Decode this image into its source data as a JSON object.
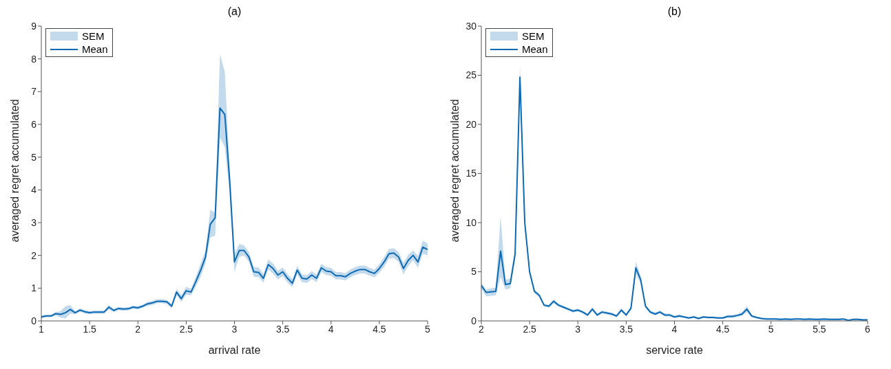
{
  "chart_data": [
    {
      "type": "line",
      "title": "(a)",
      "xlabel": "arrival  rate",
      "ylabel": "averaged regret accumulated",
      "annotations": [
        "SEM"
      ],
      "xlim": [
        1,
        5
      ],
      "ylim": [
        0,
        9
      ],
      "xticks": [
        1,
        1.5,
        2,
        2.5,
        3,
        3.5,
        4,
        4.5,
        5
      ],
      "yticks": [
        0,
        1,
        2,
        3,
        4,
        5,
        6,
        7,
        8,
        9
      ],
      "grid": false,
      "legend": "top left",
      "x": [
        1.0,
        1.05,
        1.1,
        1.15,
        1.2,
        1.25,
        1.3,
        1.35,
        1.4,
        1.45,
        1.5,
        1.55,
        1.6,
        1.65,
        1.7,
        1.75,
        1.8,
        1.85,
        1.9,
        1.95,
        2.0,
        2.05,
        2.1,
        2.15,
        2.2,
        2.25,
        2.3,
        2.35,
        2.4,
        2.45,
        2.5,
        2.55,
        2.6,
        2.65,
        2.7,
        2.75,
        2.8,
        2.85,
        2.9,
        2.95,
        3.0,
        3.05,
        3.1,
        3.15,
        3.2,
        3.25,
        3.3,
        3.35,
        3.4,
        3.45,
        3.5,
        3.55,
        3.6,
        3.65,
        3.7,
        3.75,
        3.8,
        3.85,
        3.9,
        3.95,
        4.0,
        4.05,
        4.1,
        4.15,
        4.2,
        4.25,
        4.3,
        4.35,
        4.4,
        4.45,
        4.5,
        4.55,
        4.6,
        4.65,
        4.7,
        4.75,
        4.8,
        4.85,
        4.9,
        4.95,
        5.0
      ],
      "series": [
        {
          "name": "Mean",
          "color": "#0c6ab4",
          "values": [
            0.12,
            0.15,
            0.15,
            0.22,
            0.2,
            0.25,
            0.35,
            0.25,
            0.33,
            0.28,
            0.25,
            0.27,
            0.27,
            0.27,
            0.42,
            0.32,
            0.38,
            0.36,
            0.37,
            0.42,
            0.4,
            0.45,
            0.52,
            0.55,
            0.6,
            0.6,
            0.58,
            0.45,
            0.88,
            0.68,
            0.92,
            0.88,
            1.2,
            1.55,
            1.95,
            2.95,
            3.15,
            6.5,
            6.3,
            4.3,
            1.8,
            2.15,
            2.15,
            1.95,
            1.5,
            1.48,
            1.3,
            1.72,
            1.6,
            1.4,
            1.5,
            1.3,
            1.15,
            1.55,
            1.3,
            1.28,
            1.4,
            1.3,
            1.62,
            1.52,
            1.5,
            1.38,
            1.38,
            1.35,
            1.45,
            1.52,
            1.57,
            1.57,
            1.5,
            1.45,
            1.6,
            1.8,
            2.05,
            2.07,
            1.95,
            1.6,
            1.85,
            2.0,
            1.8,
            2.25,
            2.18
          ],
          "lower": [
            0.08,
            0.11,
            0.11,
            0.17,
            0.1,
            0.08,
            0.22,
            0.2,
            0.28,
            0.23,
            0.2,
            0.22,
            0.22,
            0.22,
            0.35,
            0.27,
            0.33,
            0.31,
            0.32,
            0.37,
            0.35,
            0.4,
            0.46,
            0.49,
            0.54,
            0.54,
            0.52,
            0.38,
            0.78,
            0.58,
            0.8,
            0.78,
            1.05,
            1.35,
            1.75,
            2.55,
            2.6,
            5.6,
            5.3,
            3.9,
            1.5,
            1.95,
            2.0,
            1.8,
            1.35,
            1.33,
            1.17,
            1.57,
            1.45,
            1.27,
            1.37,
            1.17,
            1.03,
            1.42,
            1.18,
            1.16,
            1.28,
            1.18,
            1.5,
            1.4,
            1.38,
            1.27,
            1.27,
            1.24,
            1.33,
            1.4,
            1.45,
            1.45,
            1.38,
            1.33,
            1.47,
            1.65,
            1.9,
            1.92,
            1.8,
            1.42,
            1.68,
            1.85,
            1.62,
            2.05,
            2.0
          ],
          "upper": [
            0.16,
            0.19,
            0.19,
            0.27,
            0.3,
            0.45,
            0.48,
            0.3,
            0.38,
            0.33,
            0.3,
            0.32,
            0.32,
            0.32,
            0.49,
            0.37,
            0.43,
            0.41,
            0.42,
            0.47,
            0.45,
            0.5,
            0.58,
            0.61,
            0.66,
            0.66,
            0.64,
            0.52,
            0.98,
            0.78,
            1.04,
            0.98,
            1.35,
            1.75,
            2.15,
            3.4,
            3.3,
            8.15,
            7.6,
            4.7,
            2.05,
            2.35,
            2.3,
            2.1,
            1.65,
            1.63,
            1.43,
            1.87,
            1.75,
            1.53,
            1.63,
            1.43,
            1.27,
            1.68,
            1.42,
            1.4,
            1.52,
            1.42,
            1.74,
            1.64,
            1.62,
            1.49,
            1.49,
            1.46,
            1.57,
            1.64,
            1.69,
            1.69,
            1.62,
            1.57,
            1.73,
            1.95,
            2.2,
            2.22,
            2.1,
            1.78,
            2.02,
            2.15,
            1.98,
            2.45,
            2.36
          ]
        }
      ]
    },
    {
      "type": "line",
      "title": "(b)",
      "xlabel": "service  rate",
      "ylabel": "averaged regret accumulated",
      "annotations": [
        "SEM"
      ],
      "xlim": [
        2,
        6
      ],
      "ylim": [
        0,
        30
      ],
      "xticks": [
        2,
        2.5,
        3,
        3.5,
        4,
        4.5,
        5,
        5.5,
        6
      ],
      "yticks": [
        0,
        5,
        10,
        15,
        20,
        25,
        30
      ],
      "grid": false,
      "legend": "top left",
      "x": [
        2.0,
        2.05,
        2.1,
        2.15,
        2.2,
        2.25,
        2.3,
        2.35,
        2.4,
        2.45,
        2.5,
        2.55,
        2.6,
        2.65,
        2.7,
        2.75,
        2.8,
        2.85,
        2.9,
        2.95,
        3.0,
        3.05,
        3.1,
        3.15,
        3.2,
        3.25,
        3.3,
        3.35,
        3.4,
        3.45,
        3.5,
        3.55,
        3.6,
        3.65,
        3.7,
        3.75,
        3.8,
        3.85,
        3.9,
        3.95,
        4.0,
        4.05,
        4.1,
        4.15,
        4.2,
        4.25,
        4.3,
        4.35,
        4.4,
        4.45,
        4.5,
        4.55,
        4.6,
        4.65,
        4.7,
        4.75,
        4.8,
        4.85,
        4.9,
        4.95,
        5.0,
        5.05,
        5.1,
        5.15,
        5.2,
        5.25,
        5.3,
        5.35,
        5.4,
        5.45,
        5.5,
        5.55,
        5.6,
        5.65,
        5.7,
        5.75,
        5.8,
        5.85,
        5.9,
        5.95,
        6.0
      ],
      "series": [
        {
          "name": "Mean",
          "color": "#0c6ab4",
          "values": [
            3.6,
            2.9,
            2.95,
            3.0,
            7.1,
            3.7,
            3.8,
            6.8,
            24.8,
            10.0,
            5.0,
            3.0,
            2.6,
            1.6,
            1.5,
            2.0,
            1.6,
            1.4,
            1.2,
            1.0,
            1.1,
            0.9,
            0.6,
            1.2,
            0.6,
            0.9,
            0.8,
            0.7,
            0.5,
            1.1,
            0.6,
            1.3,
            5.4,
            4.2,
            1.5,
            0.9,
            0.7,
            0.9,
            0.6,
            0.6,
            0.4,
            0.5,
            0.4,
            0.3,
            0.4,
            0.25,
            0.4,
            0.35,
            0.35,
            0.3,
            0.3,
            0.45,
            0.45,
            0.55,
            0.7,
            1.2,
            0.5,
            0.35,
            0.25,
            0.2,
            0.2,
            0.2,
            0.15,
            0.2,
            0.15,
            0.2,
            0.2,
            0.15,
            0.2,
            0.15,
            0.15,
            0.2,
            0.15,
            0.15,
            0.15,
            0.2,
            0.05,
            0.15,
            0.15,
            0.1,
            0.1
          ],
          "lower": [
            3.3,
            2.5,
            2.55,
            2.6,
            4.5,
            3.2,
            3.3,
            6.3,
            23.5,
            9.5,
            4.7,
            2.8,
            2.4,
            1.45,
            1.35,
            1.8,
            1.45,
            1.25,
            1.05,
            0.85,
            0.95,
            0.75,
            0.45,
            1.0,
            0.45,
            0.75,
            0.65,
            0.55,
            0.35,
            0.9,
            0.45,
            1.1,
            4.8,
            3.8,
            1.3,
            0.75,
            0.55,
            0.75,
            0.45,
            0.45,
            0.3,
            0.35,
            0.3,
            0.2,
            0.3,
            0.15,
            0.3,
            0.25,
            0.25,
            0.2,
            0.2,
            0.3,
            0.3,
            0.4,
            0.5,
            0.9,
            0.35,
            0.25,
            0.15,
            0.1,
            0.1,
            0.1,
            0.05,
            0.1,
            0.05,
            0.1,
            0.1,
            0.05,
            0.1,
            0.05,
            0.05,
            0.1,
            0.05,
            0.05,
            0.05,
            0.1,
            0.0,
            0.05,
            0.05,
            0.0,
            0.0
          ],
          "upper": [
            3.9,
            3.2,
            3.3,
            3.4,
            10.7,
            4.2,
            4.3,
            7.3,
            26.0,
            10.5,
            5.3,
            3.2,
            2.8,
            1.75,
            1.65,
            2.2,
            1.75,
            1.55,
            1.35,
            1.15,
            1.25,
            1.05,
            0.75,
            1.4,
            0.75,
            1.05,
            0.95,
            0.85,
            0.65,
            1.3,
            0.75,
            1.5,
            6.0,
            4.6,
            1.7,
            1.05,
            0.85,
            1.05,
            0.75,
            0.75,
            0.5,
            0.65,
            0.5,
            0.4,
            0.5,
            0.35,
            0.5,
            0.45,
            0.45,
            0.4,
            0.4,
            0.6,
            0.6,
            0.7,
            0.9,
            1.5,
            0.65,
            0.45,
            0.35,
            0.3,
            0.3,
            0.3,
            0.25,
            0.3,
            0.25,
            0.3,
            0.3,
            0.25,
            0.3,
            0.25,
            0.25,
            0.3,
            0.25,
            0.25,
            0.25,
            0.3,
            0.15,
            0.25,
            0.25,
            0.2,
            0.2
          ]
        }
      ]
    }
  ]
}
